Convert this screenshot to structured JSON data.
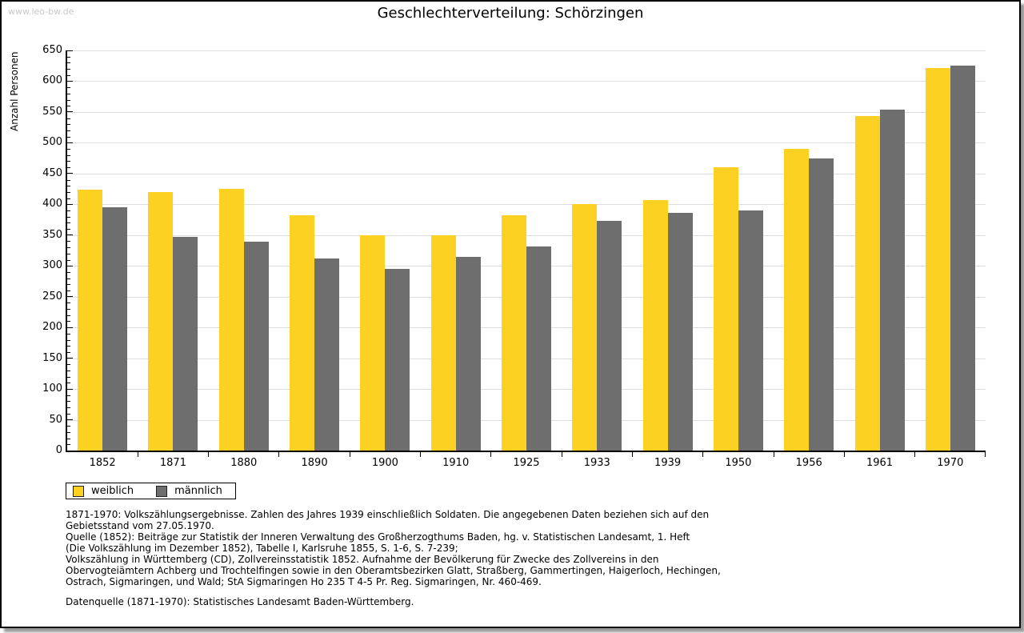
{
  "watermark": "www.leo-bw.de",
  "title": "Geschlechterverteilung: Schörzingen",
  "chart_data": {
    "type": "bar",
    "title": "Geschlechterverteilung: Schörzingen",
    "xlabel": "",
    "ylabel": "Anzahl Personen",
    "ylim": [
      0,
      650
    ],
    "ytick_step": 50,
    "minor_tick_step": 10,
    "grid": true,
    "legend_position": "bottom-left",
    "categories": [
      "1852",
      "1871",
      "1880",
      "1890",
      "1900",
      "1910",
      "1925",
      "1933",
      "1939",
      "1950",
      "1956",
      "1961",
      "1970"
    ],
    "series": [
      {
        "name": "weiblich",
        "color": "#FCD122",
        "values": [
          424,
          420,
          425,
          382,
          350,
          350,
          382,
          400,
          407,
          460,
          490,
          544,
          622
        ]
      },
      {
        "name": "männlich",
        "color": "#6E6E6E",
        "values": [
          395,
          347,
          339,
          312,
          295,
          314,
          331,
          373,
          386,
          390,
          474,
          554,
          625
        ]
      }
    ]
  },
  "footnotes": {
    "lines": [
      "1871-1970: Volkszählungsergebnisse. Zahlen des Jahres 1939 einschließlich Soldaten. Die angegebenen Daten beziehen sich auf den",
      "Gebietsstand vom 27.05.1970.",
      "Quelle (1852): Beiträge zur Statistik der Inneren Verwaltung des Großherzogthums Baden, hg. v. Statistischen Landesamt, 1. Heft",
      "(Die Volkszählung im Dezember 1852), Tabelle I, Karlsruhe 1855, S. 1-6, S. 7-239;",
      "Volkszählung in Württemberg (CD), Zollvereinsstatistik 1852. Aufnahme der Bevölkerung für Zwecke des Zollvereins in den",
      "Obervogteiämtern Achberg und Trochtelfingen sowie in den Oberamtsbezirken Glatt, Straßberg, Gammertingen, Haigerloch, Hechingen,",
      "Ostrach, Sigmaringen, und Wald; StA Sigmaringen Ho 235 T 4-5 Pr. Reg. Sigmaringen, Nr. 460-469."
    ],
    "datasource": "Datenquelle (1871-1970): Statistisches Landesamt Baden-Württemberg."
  },
  "colors": {
    "weiblich": "#FCD122",
    "männlich": "#6E6E6E",
    "gridline": "#DDDDDD",
    "axis": "#000000",
    "watermark": "#C8C8C8",
    "frame_border": "#000000"
  }
}
